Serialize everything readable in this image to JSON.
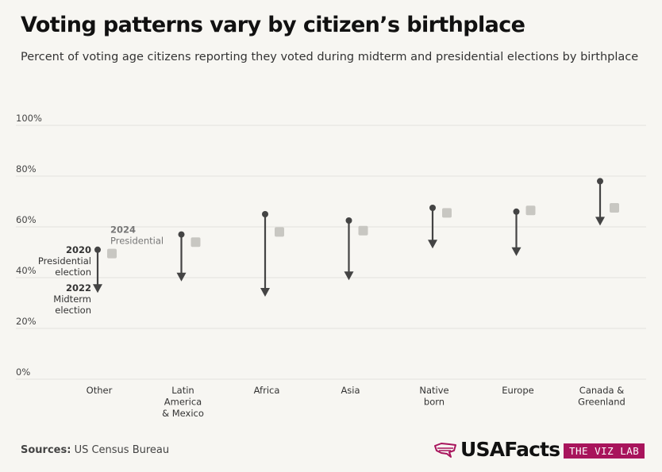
{
  "header": {
    "title": "Voting patterns vary by citizen’s birthplace",
    "subtitle": "Percent of voting age citizens reporting they voted during midterm and presidential elections by birthplace"
  },
  "annotations": {
    "year_2020": "2020",
    "label_2020_line1": "Presidential",
    "label_2020_line2": "election",
    "year_2022": "2022",
    "label_2022_line1": "Midterm",
    "label_2022_line2": "election",
    "year_2024": "2024",
    "label_2024": "Presidential"
  },
  "chart_data": {
    "type": "arrow-dot",
    "categories": [
      [
        "Other"
      ],
      [
        "Latin",
        "America",
        "& Mexico"
      ],
      [
        "Africa"
      ],
      [
        "Asia"
      ],
      [
        "Native",
        "born"
      ],
      [
        "Europe"
      ],
      [
        "Canada &",
        "Greenland"
      ]
    ],
    "series": [
      {
        "name": "2020 Presidential election",
        "values": [
          51,
          57,
          65,
          62.5,
          67.5,
          66,
          78
        ]
      },
      {
        "name": "2022 Midterm election",
        "values": [
          34,
          38.5,
          32.5,
          39,
          51.5,
          48.5,
          60.5
        ]
      },
      {
        "name": "2024 Presidential",
        "values": [
          49.5,
          54,
          58,
          58.5,
          65.5,
          66.5,
          67.5
        ]
      }
    ],
    "yticks": [
      "0%",
      "20%",
      "40%",
      "60%",
      "80%",
      "100%"
    ],
    "ylim": [
      0,
      100
    ],
    "colors": {
      "arrow": "#444444",
      "square": "#c8c7c2",
      "grid": "#e3e2dd"
    }
  },
  "footer": {
    "source_label": "Sources:",
    "source_text": "US Census Bureau",
    "brand": "USAFacts",
    "vizlab": "THE VIZ LAB"
  }
}
